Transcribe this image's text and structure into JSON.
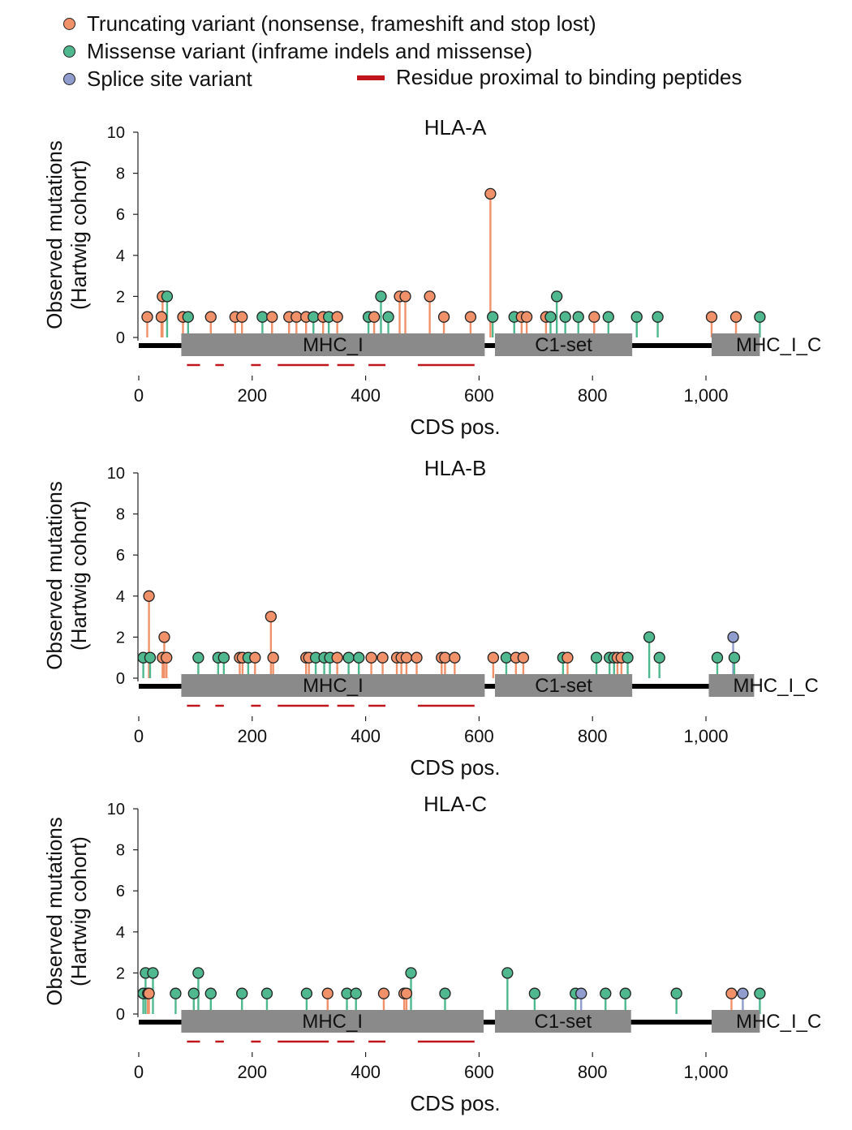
{
  "legend": {
    "truncating": "Truncating variant (nonsense, frameshift and stop lost)",
    "missense": "Missense variant (inframe indels and missense)",
    "splice": "Splice site variant",
    "binding": "Residue proximal to binding peptides"
  },
  "colors": {
    "truncating": "#f0916a",
    "missense": "#4fb88f",
    "splice": "#8f9ccd",
    "domain": "#8a8a8a",
    "binding": "#c0161b"
  },
  "chart_data": [
    {
      "type": "lollipop",
      "title": "HLA-A",
      "ylabel": [
        "Observed mutations",
        "(Hartwig cohort)"
      ],
      "xlabel": "CDS pos.",
      "xlim": [
        0,
        1100
      ],
      "ylim": [
        0,
        10
      ],
      "xticks": [
        0,
        200,
        400,
        600,
        800,
        1000
      ],
      "xticklabels": [
        "0",
        "200",
        "400",
        "600",
        "800",
        "1,000"
      ],
      "yticks": [
        0,
        2,
        4,
        6,
        8,
        10
      ],
      "protein_end": 1095,
      "domains": [
        {
          "name": "MHC_I",
          "start": 75,
          "end": 610
        },
        {
          "name": "C1-set",
          "start": 628,
          "end": 870
        },
        {
          "name": "MHC_I_C",
          "start": 1010,
          "end": 1095
        }
      ],
      "binding_segments": [
        [
          85,
          108
        ],
        [
          135,
          150
        ],
        [
          198,
          215
        ],
        [
          245,
          335
        ],
        [
          350,
          380
        ],
        [
          405,
          435
        ],
        [
          492,
          592
        ]
      ],
      "mutations": [
        {
          "pos": 15,
          "count": 1,
          "type": "truncating"
        },
        {
          "pos": 40,
          "count": 1,
          "type": "truncating"
        },
        {
          "pos": 42,
          "count": 2,
          "type": "truncating"
        },
        {
          "pos": 50,
          "count": 2,
          "type": "missense"
        },
        {
          "pos": 78,
          "count": 1,
          "type": "truncating"
        },
        {
          "pos": 87,
          "count": 1,
          "type": "missense"
        },
        {
          "pos": 127,
          "count": 1,
          "type": "truncating"
        },
        {
          "pos": 170,
          "count": 1,
          "type": "truncating"
        },
        {
          "pos": 182,
          "count": 1,
          "type": "truncating"
        },
        {
          "pos": 218,
          "count": 1,
          "type": "missense"
        },
        {
          "pos": 235,
          "count": 1,
          "type": "truncating"
        },
        {
          "pos": 265,
          "count": 1,
          "type": "truncating"
        },
        {
          "pos": 278,
          "count": 1,
          "type": "truncating"
        },
        {
          "pos": 295,
          "count": 1,
          "type": "truncating"
        },
        {
          "pos": 308,
          "count": 1,
          "type": "missense"
        },
        {
          "pos": 325,
          "count": 1,
          "type": "truncating"
        },
        {
          "pos": 335,
          "count": 1,
          "type": "missense"
        },
        {
          "pos": 350,
          "count": 1,
          "type": "truncating"
        },
        {
          "pos": 405,
          "count": 1,
          "type": "missense"
        },
        {
          "pos": 415,
          "count": 1,
          "type": "truncating"
        },
        {
          "pos": 427,
          "count": 2,
          "type": "missense"
        },
        {
          "pos": 440,
          "count": 1,
          "type": "missense"
        },
        {
          "pos": 460,
          "count": 2,
          "type": "truncating"
        },
        {
          "pos": 470,
          "count": 2,
          "type": "truncating"
        },
        {
          "pos": 513,
          "count": 2,
          "type": "truncating"
        },
        {
          "pos": 538,
          "count": 1,
          "type": "truncating"
        },
        {
          "pos": 585,
          "count": 1,
          "type": "truncating"
        },
        {
          "pos": 620,
          "count": 7,
          "type": "truncating"
        },
        {
          "pos": 624,
          "count": 1,
          "type": "missense"
        },
        {
          "pos": 662,
          "count": 1,
          "type": "missense"
        },
        {
          "pos": 675,
          "count": 1,
          "type": "truncating"
        },
        {
          "pos": 684,
          "count": 1,
          "type": "truncating"
        },
        {
          "pos": 718,
          "count": 1,
          "type": "truncating"
        },
        {
          "pos": 726,
          "count": 1,
          "type": "missense"
        },
        {
          "pos": 737,
          "count": 2,
          "type": "missense"
        },
        {
          "pos": 752,
          "count": 1,
          "type": "missense"
        },
        {
          "pos": 775,
          "count": 1,
          "type": "missense"
        },
        {
          "pos": 803,
          "count": 1,
          "type": "truncating"
        },
        {
          "pos": 828,
          "count": 1,
          "type": "missense"
        },
        {
          "pos": 878,
          "count": 1,
          "type": "missense"
        },
        {
          "pos": 915,
          "count": 1,
          "type": "missense"
        },
        {
          "pos": 1010,
          "count": 1,
          "type": "truncating"
        },
        {
          "pos": 1053,
          "count": 1,
          "type": "truncating"
        },
        {
          "pos": 1095,
          "count": 1,
          "type": "missense"
        }
      ]
    },
    {
      "type": "lollipop",
      "title": "HLA-B",
      "ylabel": [
        "Observed mutations",
        "(Hartwig cohort)"
      ],
      "xlabel": "CDS pos.",
      "xlim": [
        0,
        1100
      ],
      "ylim": [
        0,
        10
      ],
      "xticks": [
        0,
        200,
        400,
        600,
        800,
        1000
      ],
      "xticklabels": [
        "0",
        "200",
        "400",
        "600",
        "800",
        "1,000"
      ],
      "yticks": [
        0,
        2,
        4,
        6,
        8,
        10
      ],
      "protein_end": 1085,
      "domains": [
        {
          "name": "MHC_I",
          "start": 75,
          "end": 610
        },
        {
          "name": "C1-set",
          "start": 628,
          "end": 870
        },
        {
          "name": "MHC_I_C",
          "start": 1005,
          "end": 1085
        }
      ],
      "binding_segments": [
        [
          85,
          108
        ],
        [
          135,
          150
        ],
        [
          198,
          215
        ],
        [
          245,
          335
        ],
        [
          350,
          380
        ],
        [
          405,
          435
        ],
        [
          492,
          592
        ]
      ],
      "mutations": [
        {
          "pos": 8,
          "count": 1,
          "type": "missense"
        },
        {
          "pos": 18,
          "count": 4,
          "type": "truncating"
        },
        {
          "pos": 20,
          "count": 1,
          "type": "missense"
        },
        {
          "pos": 42,
          "count": 1,
          "type": "truncating"
        },
        {
          "pos": 45,
          "count": 2,
          "type": "truncating"
        },
        {
          "pos": 49,
          "count": 1,
          "type": "truncating"
        },
        {
          "pos": 105,
          "count": 1,
          "type": "missense"
        },
        {
          "pos": 140,
          "count": 1,
          "type": "missense"
        },
        {
          "pos": 150,
          "count": 1,
          "type": "missense"
        },
        {
          "pos": 178,
          "count": 1,
          "type": "truncating"
        },
        {
          "pos": 183,
          "count": 1,
          "type": "truncating"
        },
        {
          "pos": 193,
          "count": 1,
          "type": "missense"
        },
        {
          "pos": 205,
          "count": 1,
          "type": "truncating"
        },
        {
          "pos": 233,
          "count": 3,
          "type": "truncating"
        },
        {
          "pos": 237,
          "count": 1,
          "type": "truncating"
        },
        {
          "pos": 295,
          "count": 1,
          "type": "truncating"
        },
        {
          "pos": 300,
          "count": 1,
          "type": "truncating"
        },
        {
          "pos": 312,
          "count": 1,
          "type": "missense"
        },
        {
          "pos": 327,
          "count": 1,
          "type": "missense"
        },
        {
          "pos": 337,
          "count": 1,
          "type": "missense"
        },
        {
          "pos": 350,
          "count": 1,
          "type": "truncating"
        },
        {
          "pos": 370,
          "count": 1,
          "type": "missense"
        },
        {
          "pos": 388,
          "count": 1,
          "type": "missense"
        },
        {
          "pos": 410,
          "count": 1,
          "type": "truncating"
        },
        {
          "pos": 430,
          "count": 1,
          "type": "truncating"
        },
        {
          "pos": 455,
          "count": 1,
          "type": "truncating"
        },
        {
          "pos": 463,
          "count": 1,
          "type": "truncating"
        },
        {
          "pos": 472,
          "count": 1,
          "type": "truncating"
        },
        {
          "pos": 490,
          "count": 1,
          "type": "truncating"
        },
        {
          "pos": 534,
          "count": 1,
          "type": "truncating"
        },
        {
          "pos": 540,
          "count": 1,
          "type": "truncating"
        },
        {
          "pos": 557,
          "count": 1,
          "type": "truncating"
        },
        {
          "pos": 625,
          "count": 1,
          "type": "truncating"
        },
        {
          "pos": 648,
          "count": 1,
          "type": "missense"
        },
        {
          "pos": 665,
          "count": 1,
          "type": "truncating"
        },
        {
          "pos": 678,
          "count": 1,
          "type": "truncating"
        },
        {
          "pos": 748,
          "count": 1,
          "type": "missense"
        },
        {
          "pos": 756,
          "count": 1,
          "type": "truncating"
        },
        {
          "pos": 807,
          "count": 1,
          "type": "missense"
        },
        {
          "pos": 830,
          "count": 1,
          "type": "missense"
        },
        {
          "pos": 838,
          "count": 1,
          "type": "missense"
        },
        {
          "pos": 844,
          "count": 1,
          "type": "truncating"
        },
        {
          "pos": 851,
          "count": 1,
          "type": "truncating"
        },
        {
          "pos": 862,
          "count": 1,
          "type": "missense"
        },
        {
          "pos": 900,
          "count": 2,
          "type": "missense"
        },
        {
          "pos": 918,
          "count": 1,
          "type": "missense"
        },
        {
          "pos": 1020,
          "count": 1,
          "type": "missense"
        },
        {
          "pos": 1048,
          "count": 2,
          "type": "splice"
        },
        {
          "pos": 1050,
          "count": 1,
          "type": "missense"
        }
      ]
    },
    {
      "type": "lollipop",
      "title": "HLA-C",
      "ylabel": [
        "Observed mutations",
        "(Hartwig cohort)"
      ],
      "xlabel": "CDS pos.",
      "xlim": [
        0,
        1100
      ],
      "ylim": [
        0,
        10
      ],
      "xticks": [
        0,
        200,
        400,
        600,
        800,
        1000
      ],
      "xticklabels": [
        "0",
        "200",
        "400",
        "600",
        "800",
        "1,000"
      ],
      "yticks": [
        0,
        2,
        4,
        6,
        8,
        10
      ],
      "protein_end": 1095,
      "domains": [
        {
          "name": "MHC_I",
          "start": 75,
          "end": 608
        },
        {
          "name": "C1-set",
          "start": 628,
          "end": 868
        },
        {
          "name": "MHC_I_C",
          "start": 1010,
          "end": 1095
        }
      ],
      "binding_segments": [
        [
          85,
          108
        ],
        [
          135,
          150
        ],
        [
          198,
          215
        ],
        [
          245,
          335
        ],
        [
          350,
          380
        ],
        [
          405,
          435
        ],
        [
          492,
          592
        ]
      ],
      "mutations": [
        {
          "pos": 8,
          "count": 1,
          "type": "missense"
        },
        {
          "pos": 12,
          "count": 2,
          "type": "missense"
        },
        {
          "pos": 16,
          "count": 1,
          "type": "truncating"
        },
        {
          "pos": 18,
          "count": 1,
          "type": "truncating"
        },
        {
          "pos": 25,
          "count": 2,
          "type": "missense"
        },
        {
          "pos": 65,
          "count": 1,
          "type": "missense"
        },
        {
          "pos": 97,
          "count": 1,
          "type": "missense"
        },
        {
          "pos": 105,
          "count": 2,
          "type": "missense"
        },
        {
          "pos": 127,
          "count": 1,
          "type": "missense"
        },
        {
          "pos": 182,
          "count": 1,
          "type": "missense"
        },
        {
          "pos": 226,
          "count": 1,
          "type": "missense"
        },
        {
          "pos": 296,
          "count": 1,
          "type": "missense"
        },
        {
          "pos": 333,
          "count": 1,
          "type": "truncating"
        },
        {
          "pos": 367,
          "count": 1,
          "type": "missense"
        },
        {
          "pos": 383,
          "count": 1,
          "type": "missense"
        },
        {
          "pos": 432,
          "count": 1,
          "type": "truncating"
        },
        {
          "pos": 468,
          "count": 1,
          "type": "truncating"
        },
        {
          "pos": 472,
          "count": 1,
          "type": "truncating"
        },
        {
          "pos": 480,
          "count": 2,
          "type": "missense"
        },
        {
          "pos": 540,
          "count": 1,
          "type": "missense"
        },
        {
          "pos": 650,
          "count": 2,
          "type": "missense"
        },
        {
          "pos": 698,
          "count": 1,
          "type": "missense"
        },
        {
          "pos": 770,
          "count": 1,
          "type": "missense"
        },
        {
          "pos": 780,
          "count": 1,
          "type": "splice"
        },
        {
          "pos": 823,
          "count": 1,
          "type": "missense"
        },
        {
          "pos": 858,
          "count": 1,
          "type": "missense"
        },
        {
          "pos": 948,
          "count": 1,
          "type": "missense"
        },
        {
          "pos": 1045,
          "count": 1,
          "type": "truncating"
        },
        {
          "pos": 1065,
          "count": 1,
          "type": "splice"
        },
        {
          "pos": 1095,
          "count": 1,
          "type": "missense"
        }
      ]
    }
  ]
}
